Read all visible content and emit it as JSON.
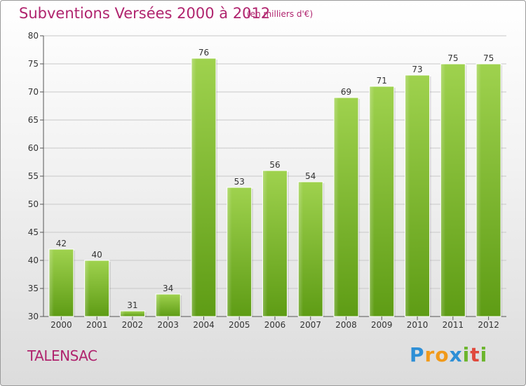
{
  "header": {
    "title": "Subventions Versées 2000 à 2012",
    "subtitle": "(en milliers d'€)"
  },
  "footer": {
    "town": "TALENSAC",
    "logo_letters": [
      "P",
      "r",
      "o",
      "x",
      "i",
      "t",
      "i"
    ]
  },
  "colors": {
    "title": "#b0246e",
    "bar_light": "#9ccf4a",
    "bar_dark": "#5f9d17",
    "grid": "#c8c8c8"
  },
  "chart_data": {
    "type": "bar",
    "title": "Subventions Versées 2000 à 2012",
    "subtitle": "(en milliers d'€)",
    "xlabel": "",
    "ylabel": "",
    "categories": [
      "2000",
      "2001",
      "2002",
      "2003",
      "2004",
      "2005",
      "2006",
      "2007",
      "2008",
      "2009",
      "2010",
      "2011",
      "2012"
    ],
    "values": [
      42,
      40,
      31,
      34,
      76,
      53,
      56,
      54,
      69,
      71,
      73,
      75,
      75
    ],
    "ylim": [
      30,
      80
    ],
    "yticks": [
      30,
      35,
      40,
      45,
      50,
      55,
      60,
      65,
      70,
      75,
      80
    ],
    "grid": "horizontal",
    "data_labels": true
  }
}
